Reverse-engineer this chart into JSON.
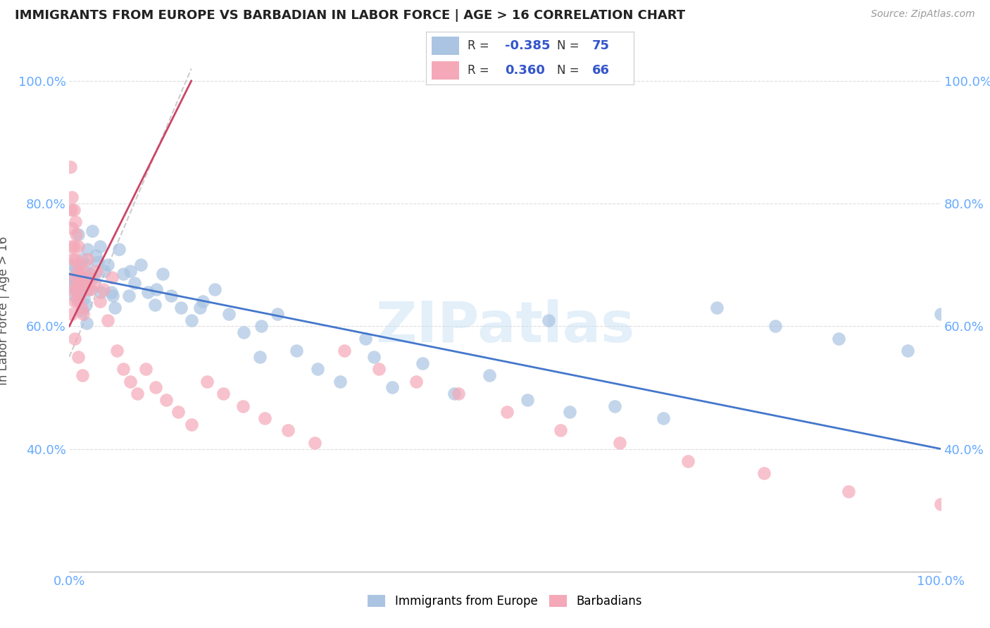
{
  "title": "IMMIGRANTS FROM EUROPE VS BARBADIAN IN LABOR FORCE | AGE > 16 CORRELATION CHART",
  "source": "Source: ZipAtlas.com",
  "ylabel": "In Labor Force | Age > 16",
  "blue_R": -0.385,
  "blue_N": 75,
  "pink_R": 0.36,
  "pink_N": 66,
  "blue_color": "#aac4e2",
  "pink_color": "#f4a8b8",
  "blue_line_color": "#4477cc",
  "pink_line_color": "#cc4466",
  "diag_color": "#cccccc",
  "watermark": "ZIPatlas",
  "tick_color": "#66aaff",
  "background_color": "#ffffff",
  "grid_color": "#dddddd",
  "blue_scatter_x": [
    0.2,
    0.3,
    0.4,
    0.5,
    0.6,
    0.7,
    0.8,
    0.9,
    1.0,
    1.1,
    1.2,
    1.3,
    1.4,
    1.5,
    1.6,
    1.7,
    1.8,
    1.9,
    2.0,
    2.1,
    2.2,
    2.4,
    2.6,
    2.8,
    3.0,
    3.3,
    3.6,
    4.0,
    4.4,
    4.8,
    5.2,
    5.7,
    6.2,
    6.8,
    7.5,
    8.2,
    9.0,
    9.8,
    10.7,
    11.7,
    12.8,
    14.0,
    15.3,
    16.7,
    18.3,
    20.0,
    21.9,
    23.9,
    26.1,
    28.5,
    31.1,
    34.0,
    37.1,
    40.5,
    44.2,
    48.2,
    52.6,
    57.4,
    62.6,
    68.2,
    74.3,
    81.0,
    88.3,
    96.2,
    100.0,
    1.0,
    2.0,
    3.5,
    5.0,
    7.0,
    10.0,
    15.0,
    22.0,
    35.0,
    55.0
  ],
  "blue_scatter_y": [
    68.0,
    66.5,
    70.0,
    67.5,
    65.0,
    69.5,
    66.0,
    64.5,
    68.5,
    66.0,
    68.0,
    65.5,
    62.5,
    71.0,
    67.5,
    64.5,
    66.5,
    63.5,
    60.5,
    72.5,
    66.0,
    68.5,
    75.5,
    68.0,
    71.5,
    70.5,
    65.5,
    69.0,
    70.0,
    65.5,
    63.0,
    72.5,
    68.5,
    65.0,
    67.0,
    70.0,
    65.5,
    63.5,
    68.5,
    65.0,
    63.0,
    61.0,
    64.0,
    66.0,
    62.0,
    59.0,
    55.0,
    62.0,
    56.0,
    53.0,
    51.0,
    58.0,
    50.0,
    54.0,
    49.0,
    52.0,
    48.0,
    46.0,
    47.0,
    45.0,
    63.0,
    60.0,
    58.0,
    56.0,
    62.0,
    75.0,
    70.0,
    73.0,
    65.0,
    69.0,
    66.0,
    63.0,
    60.0,
    55.0,
    61.0
  ],
  "pink_scatter_x": [
    0.1,
    0.2,
    0.2,
    0.3,
    0.3,
    0.4,
    0.4,
    0.5,
    0.5,
    0.6,
    0.6,
    0.7,
    0.7,
    0.8,
    0.8,
    0.9,
    0.9,
    1.0,
    1.0,
    1.1,
    1.2,
    1.3,
    1.4,
    1.5,
    1.6,
    1.7,
    1.9,
    2.1,
    2.3,
    2.5,
    2.8,
    3.1,
    3.5,
    3.9,
    4.4,
    4.9,
    5.5,
    6.2,
    7.0,
    7.8,
    8.8,
    9.9,
    11.1,
    12.5,
    14.0,
    15.8,
    17.7,
    19.9,
    22.4,
    25.1,
    28.2,
    31.6,
    35.5,
    39.8,
    44.7,
    50.2,
    56.4,
    63.2,
    71.0,
    79.7,
    89.4,
    100.0,
    0.3,
    0.6,
    1.0,
    1.5
  ],
  "pink_scatter_y": [
    86.0,
    79.0,
    73.0,
    81.0,
    76.0,
    71.0,
    66.0,
    79.0,
    73.0,
    68.0,
    64.0,
    77.0,
    71.0,
    66.0,
    75.0,
    69.0,
    64.0,
    73.0,
    67.0,
    70.0,
    65.0,
    68.0,
    63.0,
    67.0,
    62.0,
    69.0,
    66.0,
    71.0,
    68.0,
    66.0,
    67.0,
    69.0,
    64.0,
    66.0,
    61.0,
    68.0,
    56.0,
    53.0,
    51.0,
    49.0,
    53.0,
    50.0,
    48.0,
    46.0,
    44.0,
    51.0,
    49.0,
    47.0,
    45.0,
    43.0,
    41.0,
    56.0,
    53.0,
    51.0,
    49.0,
    46.0,
    43.0,
    41.0,
    38.0,
    36.0,
    33.0,
    31.0,
    62.0,
    58.0,
    55.0,
    52.0
  ],
  "blue_line_x0": 0.0,
  "blue_line_x1": 100.0,
  "blue_line_y0": 68.5,
  "blue_line_y1": 40.0,
  "pink_line_x0": 0.0,
  "pink_line_x1": 14.0,
  "pink_line_y0": 60.0,
  "pink_line_y1": 100.0,
  "diag_line_x0": 0.0,
  "diag_line_x1": 14.0,
  "diag_line_y0": 55.0,
  "diag_line_y1": 102.0,
  "xlim": [
    0.0,
    100.0
  ],
  "ylim": [
    20.0,
    105.0
  ],
  "yticks": [
    40.0,
    60.0,
    80.0,
    100.0
  ],
  "xtick_positions": [
    0.0,
    20.0,
    40.0,
    60.0,
    80.0,
    100.0
  ]
}
